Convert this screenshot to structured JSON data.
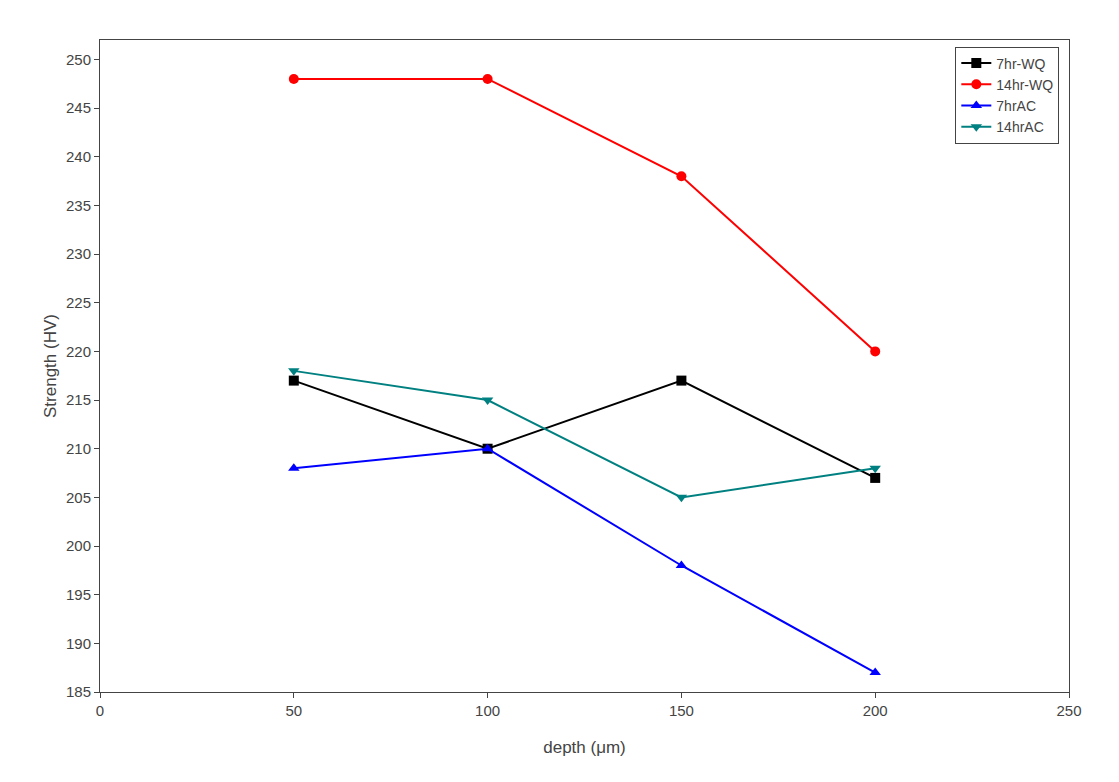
{
  "chart_data": {
    "type": "line",
    "xlabel": "depth (μm)",
    "ylabel": "Strength (HV)",
    "x": [
      50,
      100,
      150,
      200
    ],
    "series": [
      {
        "name": "7hr-WQ",
        "color": "#000000",
        "marker": "square",
        "values": [
          217,
          210,
          217,
          207
        ]
      },
      {
        "name": "14hr-WQ",
        "color": "#ff0000",
        "marker": "circle",
        "values": [
          248,
          248,
          238,
          220
        ]
      },
      {
        "name": "7hrAC",
        "color": "#0000ff",
        "marker": "triangle-up",
        "values": [
          208,
          210,
          198,
          187
        ]
      },
      {
        "name": "14hrAC",
        "color": "#008080",
        "marker": "triangle-down",
        "values": [
          218,
          215,
          205,
          208
        ]
      }
    ],
    "xlim": [
      0,
      250
    ],
    "ylim": [
      185,
      252
    ],
    "xticks": [
      0,
      50,
      100,
      150,
      200,
      250
    ],
    "yticks": [
      185,
      190,
      195,
      200,
      205,
      210,
      215,
      220,
      225,
      230,
      235,
      240,
      245,
      250
    ],
    "grid": false,
    "legend": "upper right"
  }
}
